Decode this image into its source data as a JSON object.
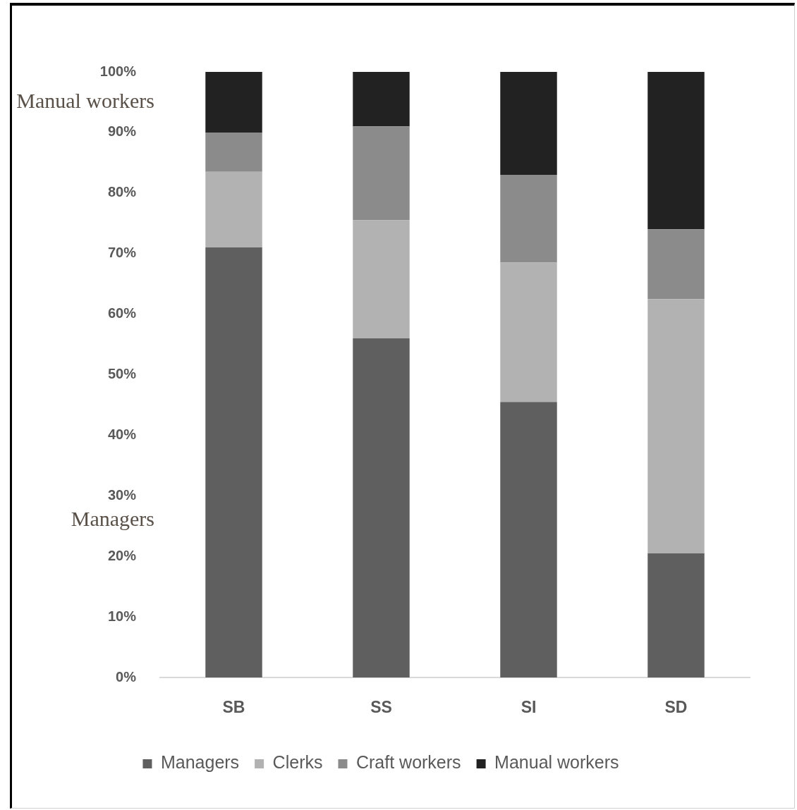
{
  "chart_data": {
    "type": "bar",
    "stacked": true,
    "legend": "bottom",
    "categories": [
      "SB",
      "SS",
      "SI",
      "SD"
    ],
    "series": [
      {
        "name": "Managers",
        "color": "#5f5f5f",
        "values": [
          71,
          56,
          45.5,
          20.5
        ]
      },
      {
        "name": "Clerks",
        "color": "#b2b2b2",
        "values": [
          12.5,
          19.5,
          23,
          42
        ]
      },
      {
        "name": "Craft workers",
        "color": "#8b8b8b",
        "values": [
          6.5,
          15.5,
          14.5,
          11.5
        ]
      },
      {
        "name": "Manual workers",
        "color": "#222222",
        "values": [
          10,
          9,
          17,
          26
        ]
      }
    ],
    "ylim": [
      0,
      100
    ],
    "yticks": [
      {
        "value": 0,
        "label": "0%"
      },
      {
        "value": 10,
        "label": "10%"
      },
      {
        "value": 20,
        "label": "20%"
      },
      {
        "value": 30,
        "label": "30%"
      },
      {
        "value": 40,
        "label": "40%"
      },
      {
        "value": 50,
        "label": "50%"
      },
      {
        "value": 60,
        "label": "60%"
      },
      {
        "value": 70,
        "label": "70%"
      },
      {
        "value": 80,
        "label": "80%"
      },
      {
        "value": 90,
        "label": "90%"
      },
      {
        "value": 100,
        "label": "100%"
      }
    ],
    "annotations": [
      "Manual workers",
      "Managers"
    ]
  }
}
